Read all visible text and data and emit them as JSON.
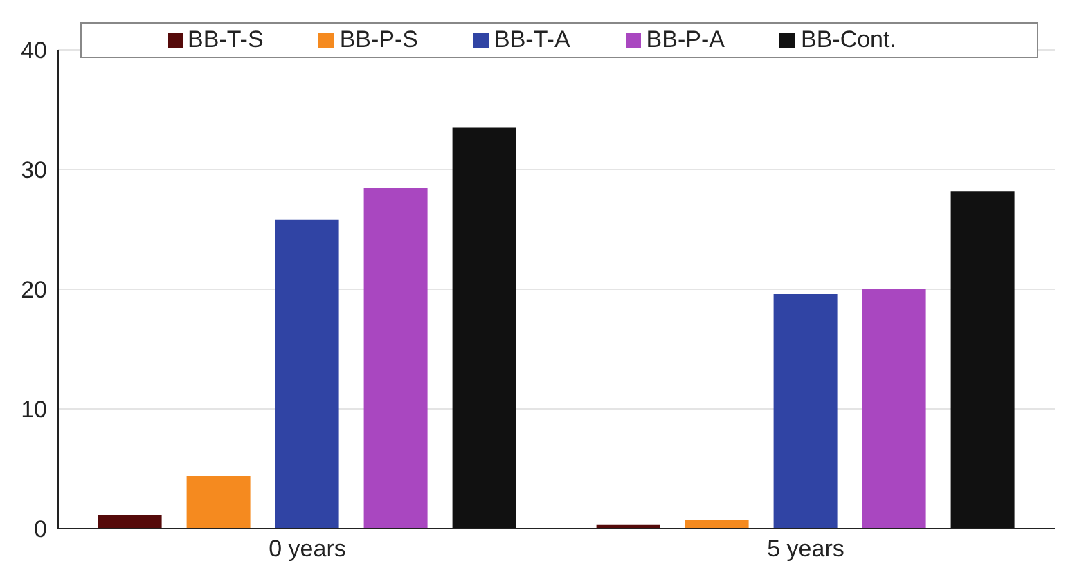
{
  "chart_data": {
    "type": "bar",
    "categories": [
      "0 years",
      "5 years"
    ],
    "series": [
      {
        "name": "BB-T-S",
        "color": "#550a0a",
        "values": [
          1.1,
          0.3
        ]
      },
      {
        "name": "BB-P-S",
        "color": "#f58a1f",
        "values": [
          4.4,
          0.7
        ]
      },
      {
        "name": "BB-T-A",
        "color": "#3044a4",
        "values": [
          25.8,
          19.6
        ]
      },
      {
        "name": "BB-P-A",
        "color": "#a947c0",
        "values": [
          28.5,
          20.0
        ]
      },
      {
        "name": "BB-Cont.",
        "color": "#111111",
        "values": [
          33.5,
          28.2
        ]
      }
    ],
    "ylim": [
      0,
      40
    ],
    "yticks": [
      0,
      10,
      20,
      30,
      40
    ],
    "grid": "y",
    "legend": "top"
  }
}
